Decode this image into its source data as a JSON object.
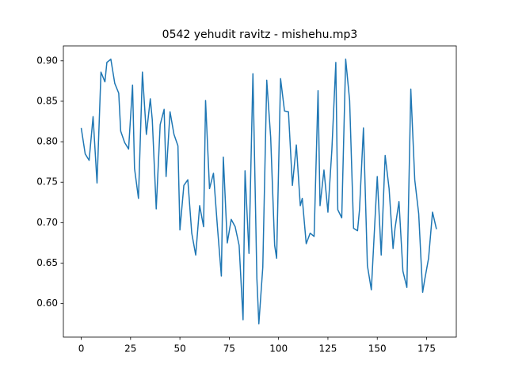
{
  "chart_data": {
    "type": "line",
    "title": "0542 yehudit ravitz - mishehu.mp3",
    "x": [
      0,
      2,
      4,
      6,
      8,
      10,
      12,
      13,
      15,
      17,
      19,
      20,
      22,
      24,
      26,
      27,
      29,
      31,
      33,
      35,
      36,
      38,
      40,
      42,
      43,
      45,
      47,
      49,
      50,
      52,
      54,
      56,
      58,
      60,
      62,
      63,
      65,
      67,
      69,
      71,
      72,
      74,
      76,
      78,
      80,
      82,
      83,
      85,
      87,
      89,
      90,
      92,
      94,
      96,
      98,
      99,
      101,
      103,
      105,
      107,
      109,
      111,
      112,
      114,
      116,
      118,
      120,
      121,
      123,
      125,
      127,
      129,
      130,
      132,
      134,
      136,
      138,
      140,
      141,
      143,
      145,
      147,
      149,
      150,
      152,
      154,
      156,
      158,
      159,
      161,
      163,
      165,
      167,
      169,
      171,
      173,
      174,
      176,
      178,
      180
    ],
    "series": [
      {
        "name": "series",
        "color": "#1f77b4",
        "values": [
          0.817,
          0.785,
          0.777,
          0.831,
          0.749,
          0.886,
          0.874,
          0.898,
          0.902,
          0.872,
          0.86,
          0.813,
          0.799,
          0.791,
          0.87,
          0.767,
          0.73,
          0.886,
          0.809,
          0.853,
          0.827,
          0.717,
          0.821,
          0.84,
          0.757,
          0.837,
          0.809,
          0.795,
          0.691,
          0.746,
          0.753,
          0.687,
          0.66,
          0.721,
          0.695,
          0.851,
          0.742,
          0.761,
          0.695,
          0.634,
          0.781,
          0.675,
          0.704,
          0.695,
          0.672,
          0.58,
          0.764,
          0.662,
          0.884,
          0.631,
          0.575,
          0.645,
          0.876,
          0.805,
          0.672,
          0.656,
          0.878,
          0.838,
          0.837,
          0.746,
          0.796,
          0.721,
          0.73,
          0.674,
          0.687,
          0.683,
          0.863,
          0.721,
          0.765,
          0.713,
          0.79,
          0.898,
          0.716,
          0.706,
          0.902,
          0.851,
          0.693,
          0.69,
          0.716,
          0.817,
          0.647,
          0.617,
          0.711,
          0.757,
          0.66,
          0.783,
          0.742,
          0.668,
          0.693,
          0.726,
          0.64,
          0.62,
          0.865,
          0.753,
          0.711,
          0.614,
          0.629,
          0.656,
          0.713,
          0.692
        ]
      }
    ],
    "xlim": [
      -9.05,
      190.05
    ],
    "xticks": [
      0,
      25,
      50,
      75,
      100,
      125,
      150,
      175
    ],
    "ylim": [
      0.5586,
      0.9184
    ],
    "yticks": [
      {
        "value": 0.6,
        "label": "0.60"
      },
      {
        "value": 0.65,
        "label": "0.65"
      },
      {
        "value": 0.7,
        "label": "0.70"
      },
      {
        "value": 0.75,
        "label": "0.75"
      },
      {
        "value": 0.8,
        "label": "0.80"
      },
      {
        "value": 0.85,
        "label": "0.85"
      },
      {
        "value": 0.9,
        "label": "0.90"
      }
    ]
  }
}
